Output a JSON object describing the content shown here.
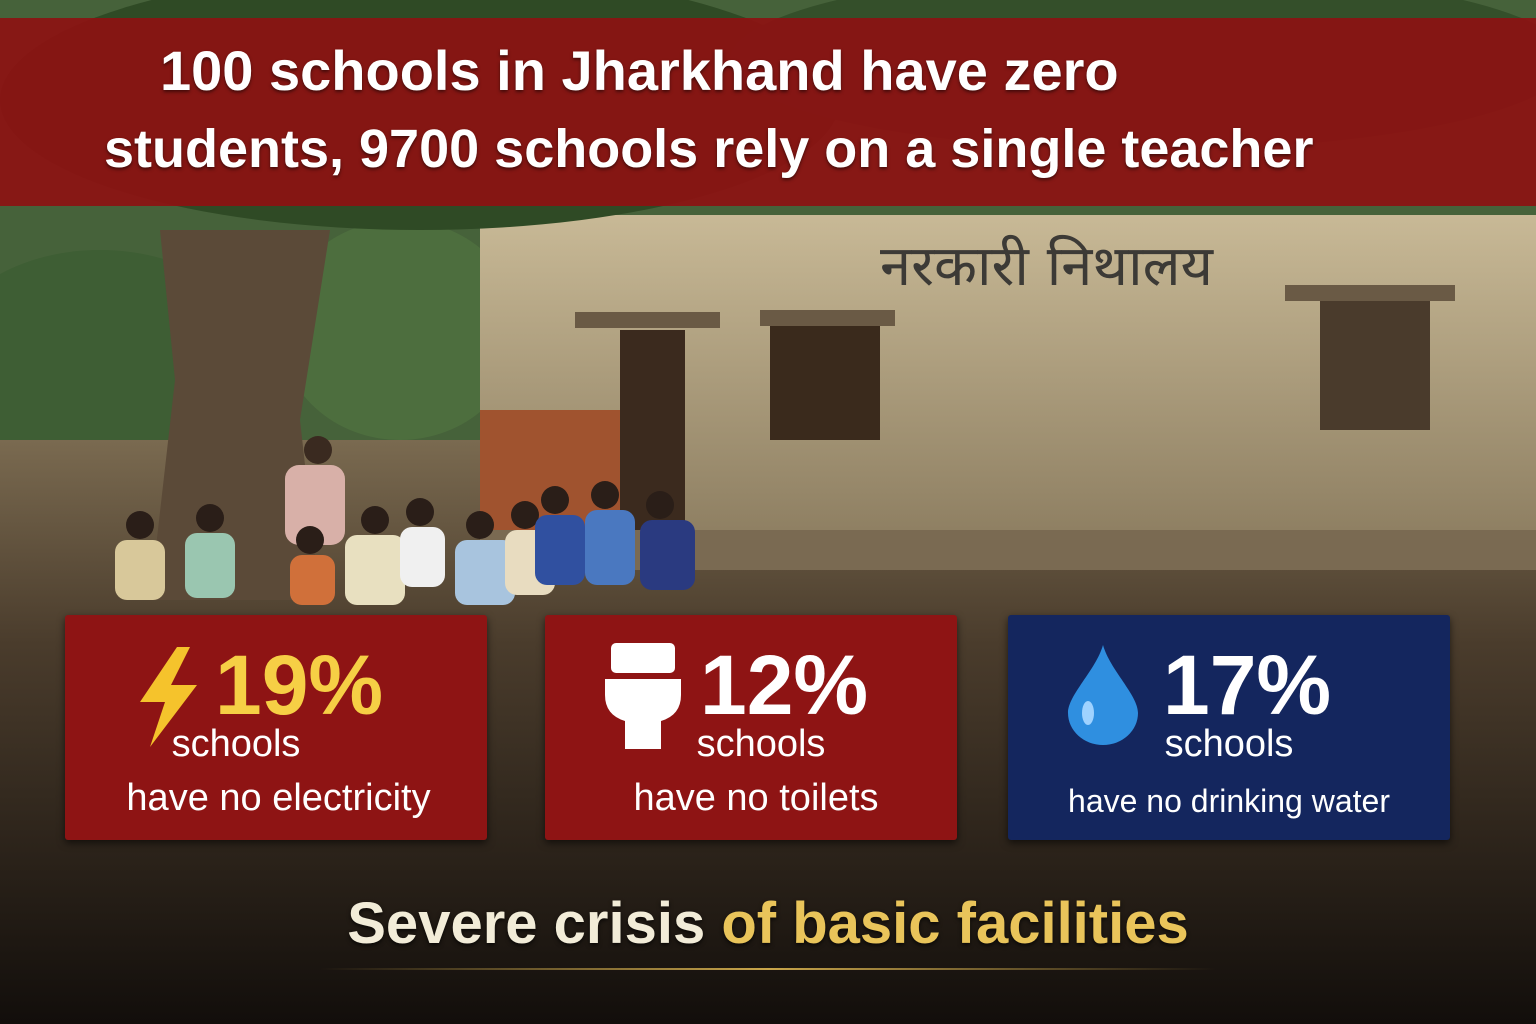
{
  "headline": {
    "lines": [
      "100 schools in Jharkhand have zero",
      "students, 9700 schools rely on a single teacher"
    ]
  },
  "scene": {
    "sign": "नरकारी निथालय"
  },
  "cards": [
    {
      "value": "19%",
      "label": "schools",
      "detail": "have no electricity"
    },
    {
      "value": "12%",
      "label": "schools",
      "detail": "have no toilets"
    },
    {
      "value": "17%",
      "label": "schools",
      "detail": "have no drinking water"
    }
  ],
  "footer": {
    "plain": "Severe crisis",
    "highlight": "of basic facilities"
  }
}
